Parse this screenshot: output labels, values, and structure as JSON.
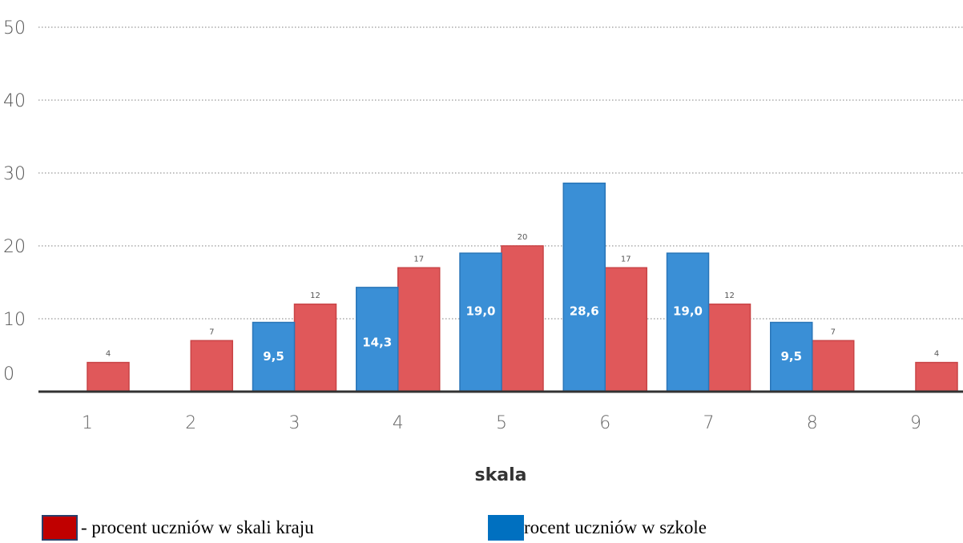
{
  "colors": {
    "national": "#e0585a",
    "school": "#3a8fd6",
    "national_swatch": "#c00000",
    "school_swatch": "#0070c0"
  },
  "chart_data": {
    "type": "bar",
    "categories": [
      "1",
      "2",
      "3",
      "4",
      "5",
      "6",
      "7",
      "8",
      "9"
    ],
    "series": [
      {
        "name": "procent uczniów w szkole",
        "values": [
          null,
          null,
          9.5,
          14.3,
          19.0,
          28.6,
          19.0,
          9.5,
          null
        ],
        "labels": [
          null,
          null,
          "9,5",
          "14,3",
          "19,0",
          "28,6",
          "19,0",
          "9,5",
          null
        ]
      },
      {
        "name": "procent uczniów w skali kraju",
        "values": [
          4,
          7,
          12,
          17,
          20,
          17,
          12,
          7,
          4
        ],
        "labels": [
          "4",
          "7",
          "12",
          "17",
          "20",
          "17",
          "12",
          "7",
          "4"
        ]
      }
    ],
    "yticks": [
      0,
      10,
      20,
      30,
      40,
      50
    ],
    "ylim": [
      0,
      50
    ],
    "xlabel": "skala",
    "ylabel": "",
    "grid": true
  },
  "legend": {
    "national_text": "- procent uczniów w skali kraju",
    "school_text": "rocent uczniów w szkole"
  }
}
